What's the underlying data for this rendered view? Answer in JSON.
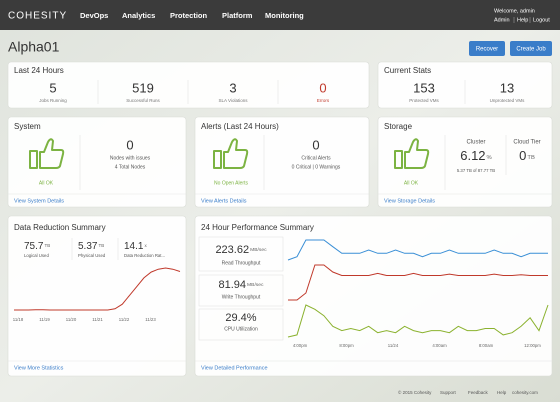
{
  "nav": {
    "brand": "COHESITY",
    "menu": [
      "DevOps",
      "Analytics",
      "Protection",
      "Platform",
      "Monitoring"
    ],
    "welcome": "Welcome, admin",
    "user_links": [
      "Admin",
      "Help",
      "Logout"
    ]
  },
  "page": {
    "title": "Alpha01",
    "actions": [
      "Recover",
      "Create Job"
    ]
  },
  "last_24_hours": {
    "title": "Last 24 Hours",
    "stats": [
      {
        "value": "5",
        "label": "Jobs Running"
      },
      {
        "value": "519",
        "label": "Successful Runs"
      },
      {
        "value": "3",
        "label": "SLA Violations"
      },
      {
        "value": "0",
        "label": "Errors",
        "color": "#c0392b"
      }
    ]
  },
  "current_stats": {
    "title": "Current Stats",
    "stats": [
      {
        "value": "153",
        "label": "Protected VMs"
      },
      {
        "value": "13",
        "label": "Unprotected VMs"
      }
    ]
  },
  "system": {
    "title": "System",
    "status": "All OK",
    "value": "0",
    "label": "Nodes with issues",
    "detail": "4 Total Nodes",
    "link": "View System Details"
  },
  "alerts": {
    "title": "Alerts (Last 24 Hours)",
    "status": "No Open Alerts",
    "value": "0",
    "label": "Critical Alerts",
    "detail": "0 Critical | 0 Warnings",
    "link": "View Alerts Details"
  },
  "storage": {
    "title": "Storage",
    "status": "All OK",
    "cluster": {
      "label": "Cluster",
      "value": "6.12",
      "unit": "%",
      "detail": "5.37 TB of 87.77 TB"
    },
    "cloud_tier": {
      "label": "Cloud Tier",
      "value": "0",
      "unit": "TB"
    },
    "link": "View Storage Details"
  },
  "data_reduction": {
    "title": "Data Reduction Summary",
    "stats": [
      {
        "value": "75.7",
        "unit": "TB",
        "label": "Logical Used"
      },
      {
        "value": "5.37",
        "unit": "TB",
        "label": "Physical Used"
      },
      {
        "value": "14.1",
        "unit": "x",
        "label": "Data Reduction Rat..."
      }
    ],
    "chart": {
      "x_labels": [
        "11/18",
        "11/19",
        "11/20",
        "11/21",
        "11/22",
        "11/23"
      ],
      "color": "#c0392b",
      "values": [
        1,
        1,
        1,
        1.05,
        1.05,
        1,
        1,
        1,
        1,
        1,
        1,
        1,
        1,
        1,
        1.2,
        2,
        3.5,
        5,
        6.5,
        7.5,
        8,
        8.2,
        8,
        7.6
      ]
    },
    "link": "View More Statistics"
  },
  "performance": {
    "title": "24 Hour Performance Summary",
    "metrics": [
      {
        "value": "223.62",
        "unit": "MB/sec",
        "label": "Read Throughput",
        "color": "#3a8fd6",
        "values": [
          6,
          6.5,
          9,
          9,
          9,
          8,
          7,
          7,
          7,
          7.5,
          7,
          7,
          7.5,
          7,
          7,
          6.5,
          7,
          7,
          7.5,
          7,
          7,
          7,
          7,
          7.5,
          7,
          7,
          6.5,
          7,
          7,
          7
        ]
      },
      {
        "value": "81.94",
        "unit": "MB/sec",
        "label": "Write Throughput",
        "color": "#c0392b",
        "values": [
          3,
          3,
          4,
          8,
          8,
          7,
          6.5,
          6.5,
          6.5,
          6.5,
          6.8,
          6.5,
          6.5,
          6.5,
          6.8,
          6.5,
          6.5,
          6.5,
          6.7,
          6.5,
          6.5,
          6.5,
          6.5,
          6.7,
          6.5,
          6.5,
          6.6,
          6.5,
          6.5,
          6.5
        ]
      },
      {
        "value": "29.4%",
        "label": "CPU Utilization",
        "color": "#8bb22f",
        "values": [
          25,
          26,
          40,
          38,
          35,
          30,
          28,
          29,
          28,
          30,
          27,
          28,
          27,
          30,
          28,
          27,
          28,
          28,
          27,
          30,
          28,
          28,
          29,
          29,
          26,
          27,
          30,
          34,
          28,
          40
        ]
      }
    ],
    "x_labels": [
      "4:00pm",
      "8:00pm",
      "11/24",
      "4:00am",
      "8:00am",
      "12:00pm"
    ],
    "link": "View Detailed Performance"
  },
  "footer": {
    "copyright": "© 2015 Cohesity",
    "links": [
      "Support",
      "Feedback",
      "Help",
      "cohesity.com"
    ]
  }
}
